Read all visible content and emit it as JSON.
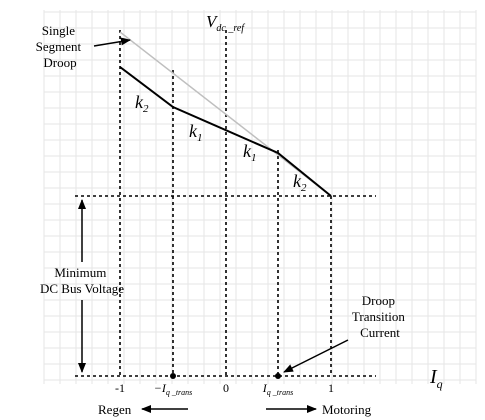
{
  "labels": {
    "v_ref_main": "V",
    "v_ref_sub": "dc _ref",
    "single_segment_droop": [
      "Single",
      "Segment",
      "Droop"
    ],
    "k2_left": "k",
    "k2_left_sub": "2",
    "k1_left": "k",
    "k1_left_sub": "1",
    "k1_right": "k",
    "k1_right_sub": "1",
    "k2_right": "k",
    "k2_right_sub": "2",
    "min_dc_bus_voltage": [
      "Minimum",
      "DC Bus Voltage"
    ],
    "droop_transition_current": [
      "Droop",
      "Transition",
      "Current"
    ],
    "axis_iq_main": "I",
    "axis_iq_sub": "q",
    "tick_neg1": "-1",
    "tick_neg_iq_main": "−I",
    "tick_neg_iq_sub": "q _trans",
    "tick_0": "0",
    "tick_iq_main": "I",
    "tick_iq_sub": "q _trans",
    "tick_1": "1",
    "regen": "Regen",
    "motoring": "Motoring"
  },
  "colors": {
    "line": "#000000",
    "single_segment_line": "#bfbfbf",
    "grid": "#e6e6e6"
  }
}
